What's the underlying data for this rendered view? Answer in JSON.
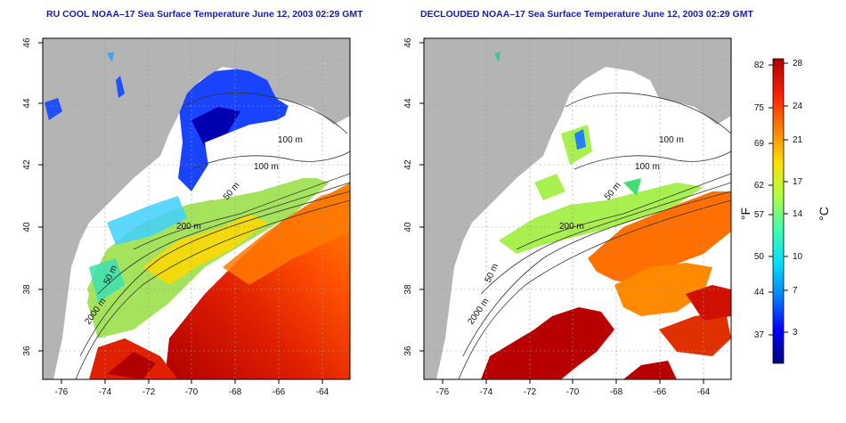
{
  "left_panel": {
    "title": "RU COOL NOAA–17 Sea Surface Temperature June 12, 2003 02:29 GMT",
    "contour_labels": [
      "100 m",
      "100 m",
      "50 m",
      "200 m",
      "50 m",
      "2000 m"
    ]
  },
  "right_panel": {
    "title": "DECLOUDED NOAA–17 Sea Surface Temperature June 12, 2003 02:29 GMT",
    "contour_labels": [
      "100 m",
      "100 m",
      "50 m",
      "200 m",
      "50 m",
      "2000 m"
    ]
  },
  "axes": {
    "x_ticks": [
      "-76",
      "-74",
      "-72",
      "-70",
      "-68",
      "-66",
      "-64"
    ],
    "y_ticks": [
      "46",
      "44",
      "42",
      "40",
      "38",
      "36"
    ]
  },
  "colorbar": {
    "fahrenheit_ticks": [
      "82",
      "75",
      "69",
      "62",
      "57",
      "50",
      "44",
      "37"
    ],
    "celsius_ticks": [
      "28",
      "24",
      "21",
      "17",
      "14",
      "10",
      "7",
      "3"
    ],
    "fahrenheit_unit": "°F",
    "celsius_unit": "°C",
    "colors": [
      "#000080",
      "#0000ff",
      "#0080ff",
      "#00e0ff",
      "#40ffb0",
      "#b0ff40",
      "#ffe000",
      "#ff8000",
      "#ff2000",
      "#b00000"
    ]
  },
  "colors": {
    "land": "#b4b4b4",
    "cloud": "#ffffff",
    "title": "#1a1aa6"
  }
}
